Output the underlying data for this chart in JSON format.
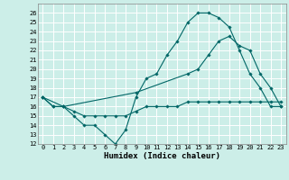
{
  "xlabel": "Humidex (Indice chaleur)",
  "bg_color": "#cceee8",
  "grid_color": "#ffffff",
  "line_color": "#006666",
  "xlim": [
    -0.5,
    23.5
  ],
  "ylim": [
    12,
    27
  ],
  "xticks": [
    0,
    1,
    2,
    3,
    4,
    5,
    6,
    7,
    8,
    9,
    10,
    11,
    12,
    13,
    14,
    15,
    16,
    17,
    18,
    19,
    20,
    21,
    22,
    23
  ],
  "yticks": [
    12,
    13,
    14,
    15,
    16,
    17,
    18,
    19,
    20,
    21,
    22,
    23,
    24,
    25,
    26
  ],
  "series1_x": [
    0,
    1,
    2,
    3,
    4,
    5,
    6,
    7,
    8,
    9,
    10,
    11,
    12,
    13,
    14,
    15,
    16,
    17,
    18,
    19,
    20,
    21,
    22,
    23
  ],
  "series1_y": [
    17,
    16,
    16,
    15,
    14,
    14,
    13,
    12,
    13.5,
    17,
    19,
    19.5,
    21.5,
    23,
    25,
    26,
    26,
    25.5,
    24.5,
    22,
    19.5,
    18,
    16,
    16
  ],
  "series2_x": [
    0,
    1,
    2,
    3,
    4,
    5,
    6,
    7,
    8,
    9,
    10,
    11,
    12,
    13,
    14,
    15,
    16,
    17,
    18,
    19,
    20,
    21,
    22,
    23
  ],
  "series2_y": [
    17,
    16,
    16,
    15.5,
    15,
    15,
    15,
    15,
    15,
    15.5,
    16,
    16,
    16,
    16,
    16.5,
    16.5,
    16.5,
    16.5,
    16.5,
    16.5,
    16.5,
    16.5,
    16.5,
    16.5
  ],
  "series3_x": [
    0,
    2,
    9,
    14,
    15,
    16,
    17,
    18,
    19,
    20,
    21,
    22,
    23
  ],
  "series3_y": [
    17,
    16,
    17.5,
    19.5,
    20,
    21.5,
    23,
    23.5,
    22.5,
    22,
    19.5,
    18,
    16
  ],
  "marker": "D",
  "marker_size": 1.8,
  "tick_fontsize": 5.0,
  "xlabel_fontsize": 6.5
}
